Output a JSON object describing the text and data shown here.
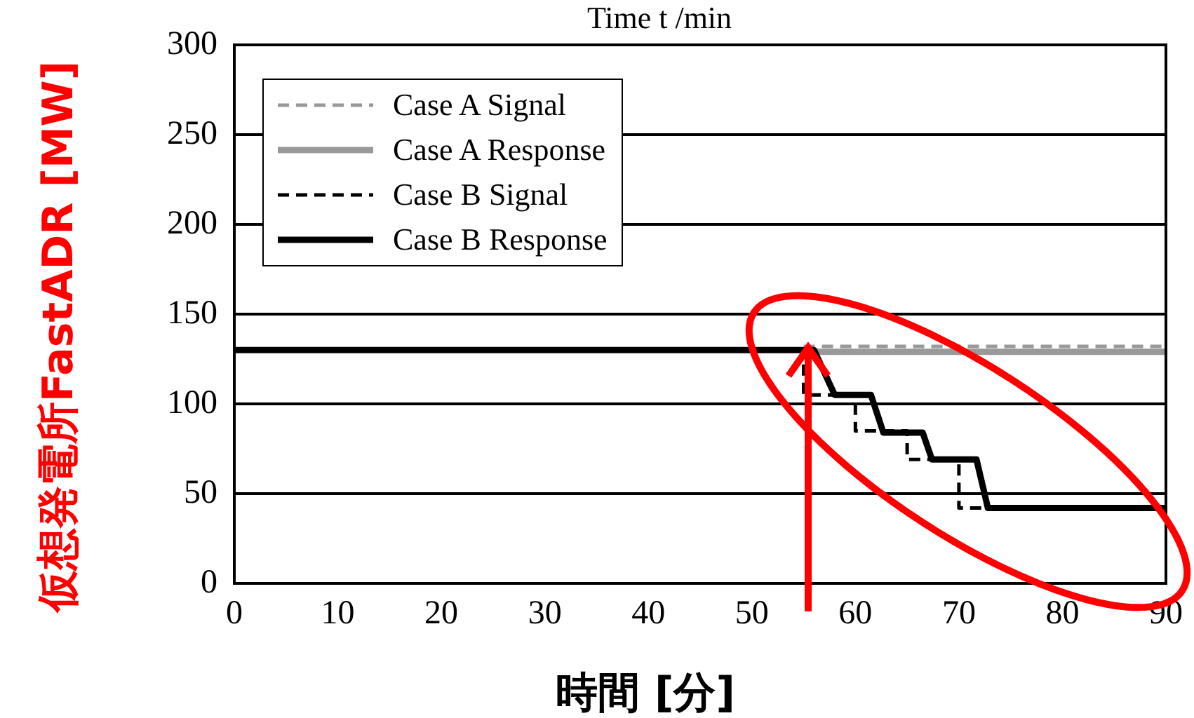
{
  "chart_data": {
    "type": "line",
    "xlabel": "時間 [分]",
    "ylabel": "仮想発電所FastADR [MW]",
    "annotations": [
      "Time t /min"
    ],
    "xlim": [
      0,
      90
    ],
    "xticks": [
      0,
      10,
      20,
      30,
      40,
      50,
      60,
      70,
      80,
      90
    ],
    "ylim": [
      0,
      300
    ],
    "yticks": [
      0,
      50,
      100,
      150,
      200,
      250,
      300
    ],
    "grid": "y",
    "legend": "top left",
    "marker": "none",
    "series": [
      {
        "name": "Case A Signal",
        "color": "#999999",
        "line_style": "dashed",
        "x": [
          55,
          90
        ],
        "values": [
          132,
          132
        ]
      },
      {
        "name": "Case A Response",
        "color": "#999999",
        "line_style": "solid",
        "x": [
          56,
          90
        ],
        "values": [
          129,
          129
        ]
      },
      {
        "name": "Case B Signal",
        "color": "#000000",
        "line_style": "dashed",
        "x": [
          0,
          55,
          55,
          60,
          60,
          65,
          65,
          70,
          70,
          90
        ],
        "values": [
          130,
          130,
          105,
          105,
          85,
          85,
          69,
          69,
          42,
          42
        ]
      },
      {
        "name": "Case B Response",
        "color": "#000000",
        "line_style": "solid",
        "x": [
          0,
          56,
          58,
          61.5,
          62.7,
          66.5,
          67.4,
          71.7,
          72.8,
          90
        ],
        "values": [
          130,
          130,
          105,
          105,
          84,
          84,
          69,
          69,
          42,
          42
        ]
      }
    ]
  }
}
